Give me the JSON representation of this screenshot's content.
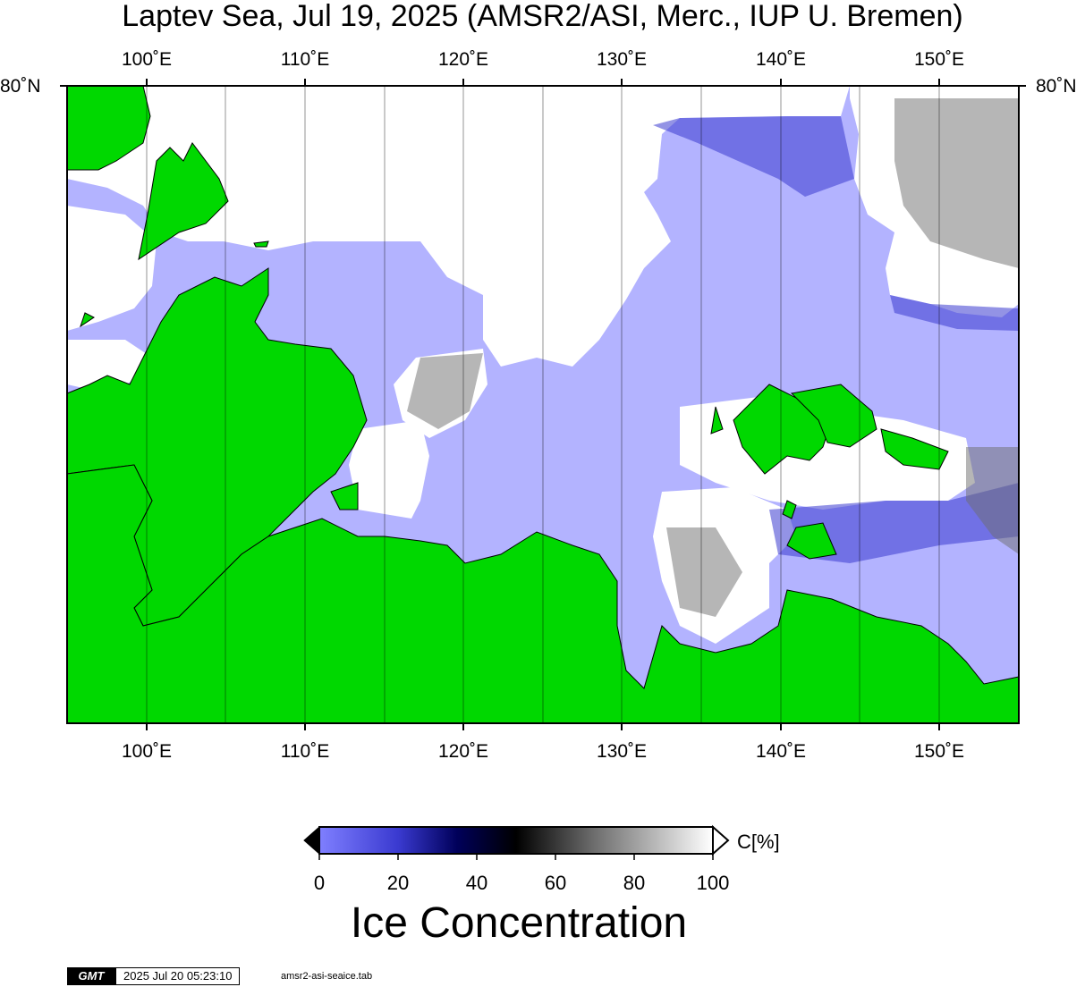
{
  "title": "Laptev Sea, Jul 19, 2025 (AMSR2/ASI, Merc., IUP U. Bremen)",
  "lon_labels": [
    "100˚E",
    "110˚E",
    "120˚E",
    "130˚E",
    "140˚E",
    "150˚E"
  ],
  "lat_label_left": "80˚N",
  "lat_label_right": "80˚N",
  "colorbar": {
    "ticks": [
      "0",
      "20",
      "40",
      "60",
      "80",
      "100"
    ],
    "unit": "C[%]",
    "title": "Ice Concentration",
    "colors": [
      "#7f7fff",
      "#3a3ad0",
      "#00005a",
      "#000000",
      "#6e6e6e",
      "#ffffff"
    ]
  },
  "colors": {
    "land": "#00d800",
    "open_water": "#b3b3ff",
    "ice_high": "#ffffff",
    "coast": "#000000"
  },
  "footer": {
    "logo": "GMT",
    "timestamp": "2025 Jul 20 05:23:10",
    "source": "amsr2-asi-seaice.tab"
  }
}
